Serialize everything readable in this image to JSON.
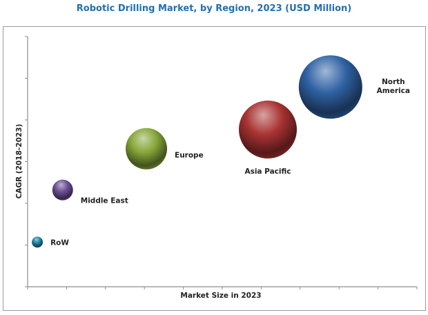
{
  "chart_data": {
    "type": "scatter",
    "subtype": "bubble",
    "title": "Robotic Drilling Market, by Region, 2023 (USD Million)",
    "xlabel": "Market Size in 2023",
    "ylabel": "CAGR (2018-2023)",
    "tick_labels_shown": false,
    "x_ticks": 10,
    "y_ticks": 6,
    "xlim": [
      0,
      10
    ],
    "ylim": [
      0,
      6
    ],
    "grid": false,
    "legend": "none",
    "points": [
      {
        "name": "RoW",
        "x": 0.25,
        "y": 1.07,
        "size": 8,
        "color": "#1f86a6"
      },
      {
        "name": "Middle East",
        "x": 0.9,
        "y": 2.32,
        "size": 15,
        "color": "#6b4e94"
      },
      {
        "name": "Europe",
        "x": 3.05,
        "y": 3.31,
        "size": 30,
        "color": "#86a63a"
      },
      {
        "name": "Asia Pacific",
        "x": 6.17,
        "y": 3.77,
        "size": 42,
        "color": "#a83232"
      },
      {
        "name": "North America",
        "x": 7.78,
        "y": 4.79,
        "size": 46,
        "color": "#2f62a3"
      }
    ]
  }
}
